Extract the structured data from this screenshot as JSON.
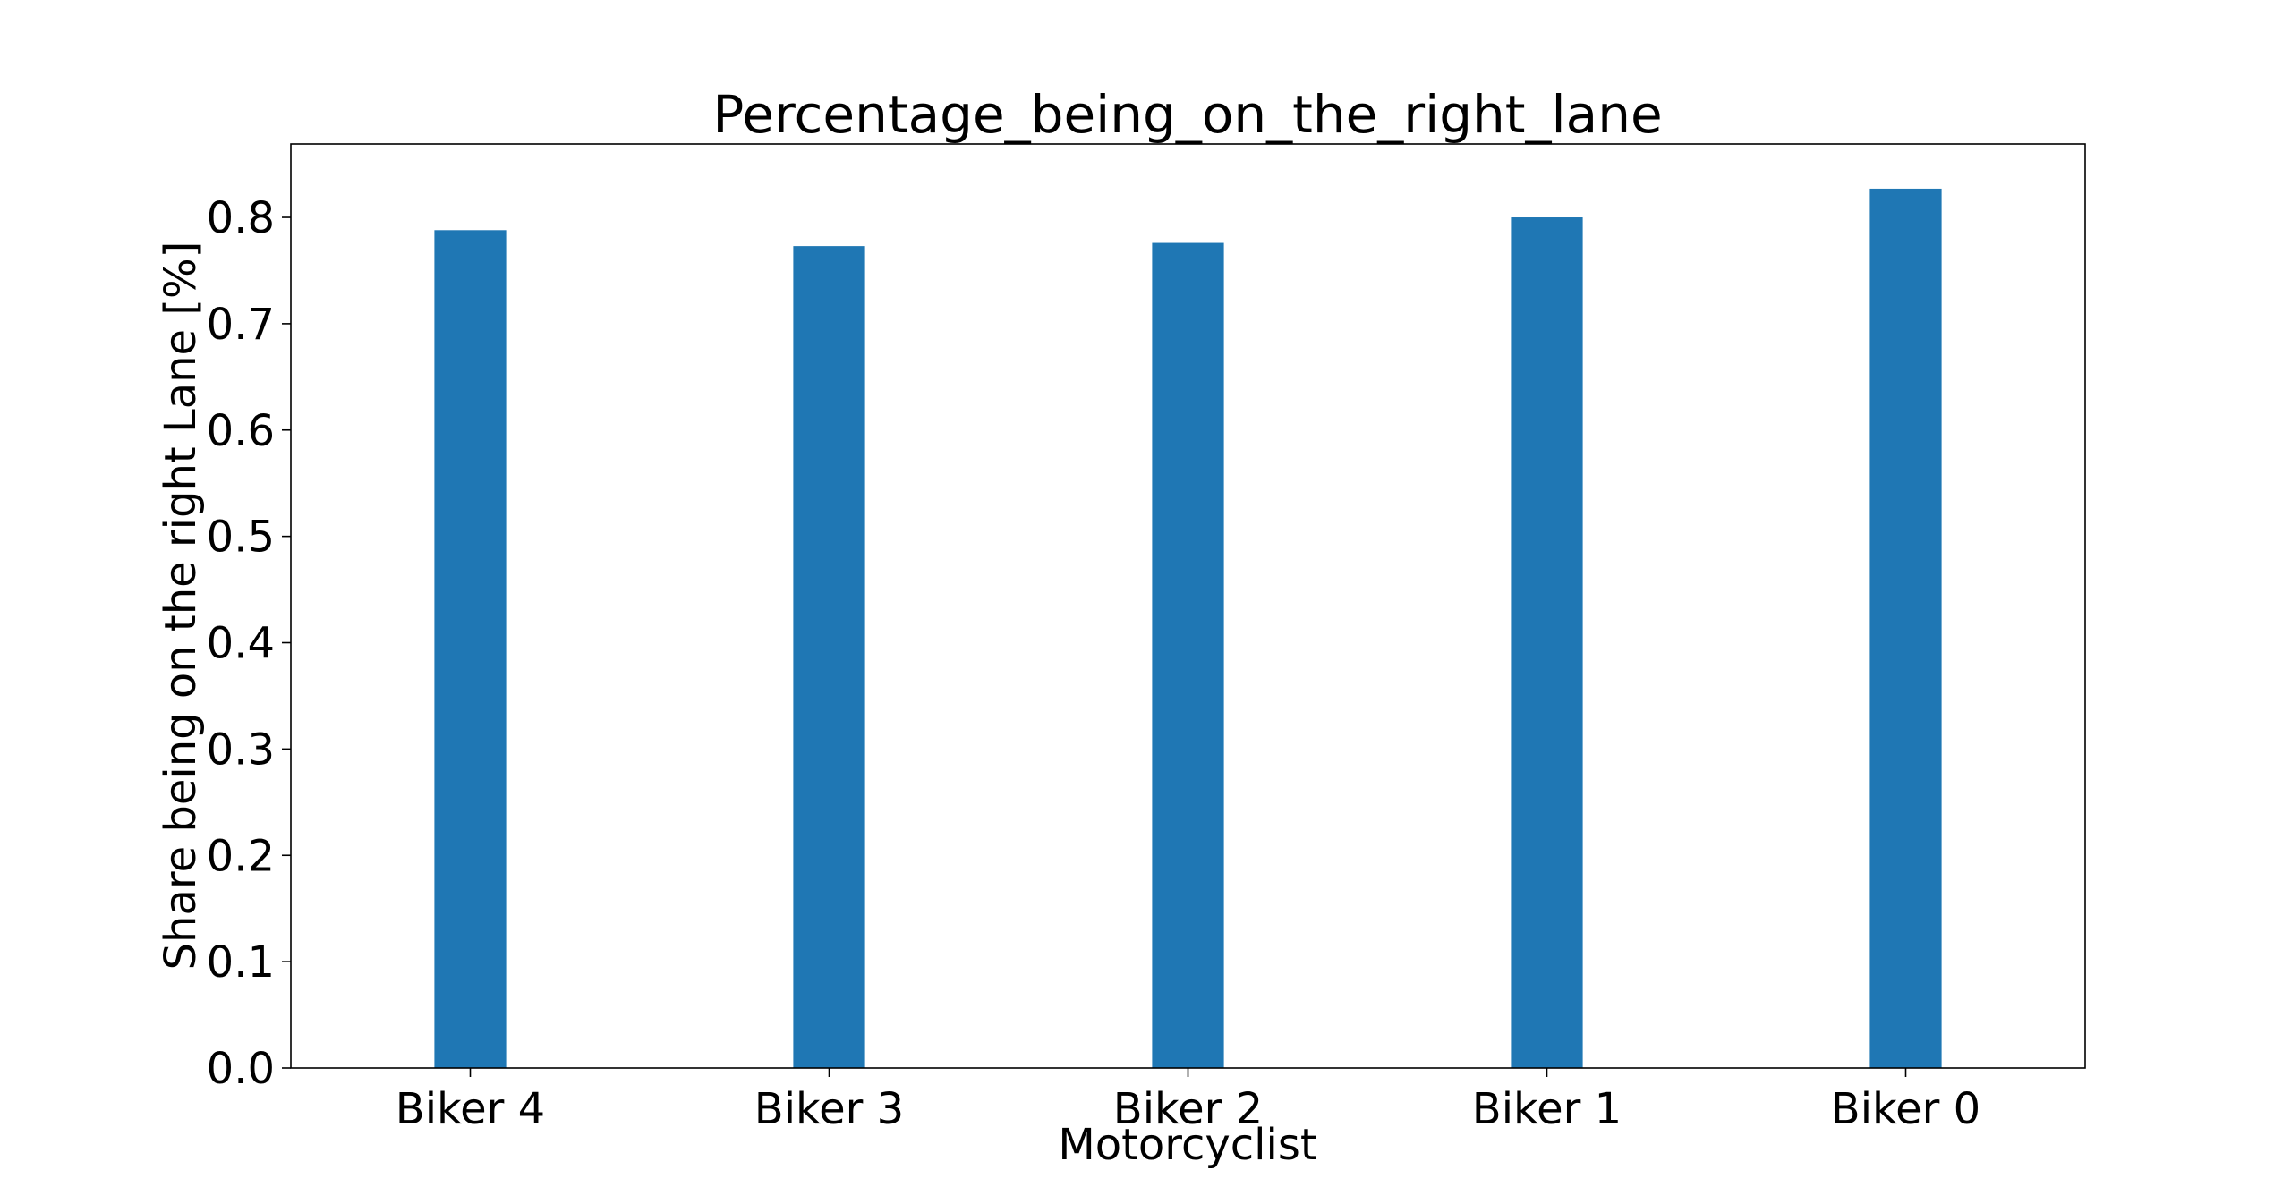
{
  "chart_data": {
    "type": "bar",
    "title": "Percentage_being_on_the_right_lane",
    "xlabel": "Motorcyclist",
    "ylabel": "Share being on the right Lane [%]",
    "categories": [
      "Biker 4",
      "Biker 3",
      "Biker 2",
      "Biker 1",
      "Biker 0"
    ],
    "values": [
      0.788,
      0.773,
      0.776,
      0.8,
      0.827
    ],
    "ylim": [
      0,
      0.869
    ],
    "yticks": [
      0.0,
      0.1,
      0.2,
      0.3,
      0.4,
      0.5,
      0.6,
      0.7,
      0.8
    ],
    "ytick_labels": [
      "0.0",
      "0.1",
      "0.2",
      "0.3",
      "0.4",
      "0.5",
      "0.6",
      "0.7",
      "0.8"
    ],
    "grid": false,
    "legend": false,
    "bar_color": "#1f77b4"
  }
}
